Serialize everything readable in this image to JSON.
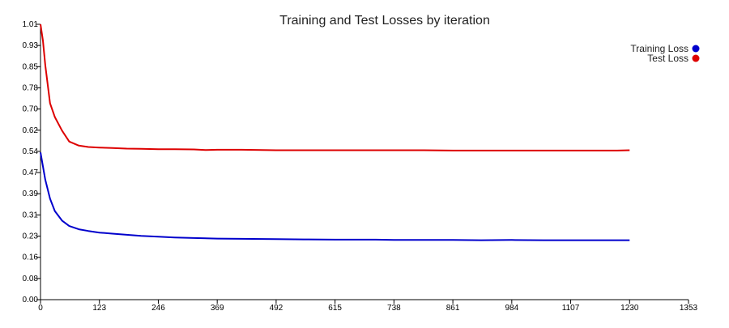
{
  "chart_data": {
    "type": "line",
    "title": "Training and Test Losses by iteration",
    "xlabel": "",
    "ylabel": "",
    "xlim": [
      0,
      1353
    ],
    "ylim": [
      0,
      1.01
    ],
    "x_ticks": [
      "0",
      "123",
      "246",
      "369",
      "492",
      "615",
      "738",
      "861",
      "984",
      "1107",
      "1230",
      "1353"
    ],
    "y_ticks": [
      "0.00",
      "0.08",
      "0.16",
      "0.23",
      "0.31",
      "0.39",
      "0.47",
      "0.54",
      "0.62",
      "0.70",
      "0.78",
      "0.85",
      "0.93",
      "1.01"
    ],
    "legend_position": "top-right",
    "grid": false,
    "series": [
      {
        "name": "Training Loss",
        "color": "#0000cc",
        "x": [
          0,
          10,
          20,
          30,
          45,
          60,
          80,
          100,
          123,
          150,
          180,
          210,
          246,
          280,
          320,
          369,
          420,
          492,
          550,
          615,
          700,
          738,
          800,
          861,
          920,
          984,
          1050,
          1107,
          1150,
          1200,
          1230
        ],
        "y": [
          0.54,
          0.44,
          0.37,
          0.325,
          0.29,
          0.27,
          0.258,
          0.252,
          0.246,
          0.242,
          0.238,
          0.234,
          0.231,
          0.228,
          0.226,
          0.224,
          0.223,
          0.222,
          0.221,
          0.22,
          0.22,
          0.219,
          0.219,
          0.219,
          0.218,
          0.219,
          0.218,
          0.218,
          0.218,
          0.218,
          0.218
        ]
      },
      {
        "name": "Test Loss",
        "color": "#dd0000",
        "x": [
          0,
          5,
          10,
          20,
          30,
          45,
          60,
          80,
          100,
          123,
          150,
          180,
          210,
          246,
          280,
          320,
          345,
          369,
          420,
          492,
          550,
          615,
          700,
          738,
          800,
          861,
          920,
          984,
          1050,
          1107,
          1150,
          1200,
          1230
        ],
        "y": [
          1.01,
          0.95,
          0.86,
          0.72,
          0.67,
          0.62,
          0.58,
          0.565,
          0.56,
          0.558,
          0.556,
          0.554,
          0.553,
          0.552,
          0.552,
          0.551,
          0.549,
          0.55,
          0.55,
          0.548,
          0.548,
          0.548,
          0.548,
          0.548,
          0.548,
          0.547,
          0.547,
          0.547,
          0.547,
          0.547,
          0.547,
          0.547,
          0.548
        ]
      }
    ]
  }
}
